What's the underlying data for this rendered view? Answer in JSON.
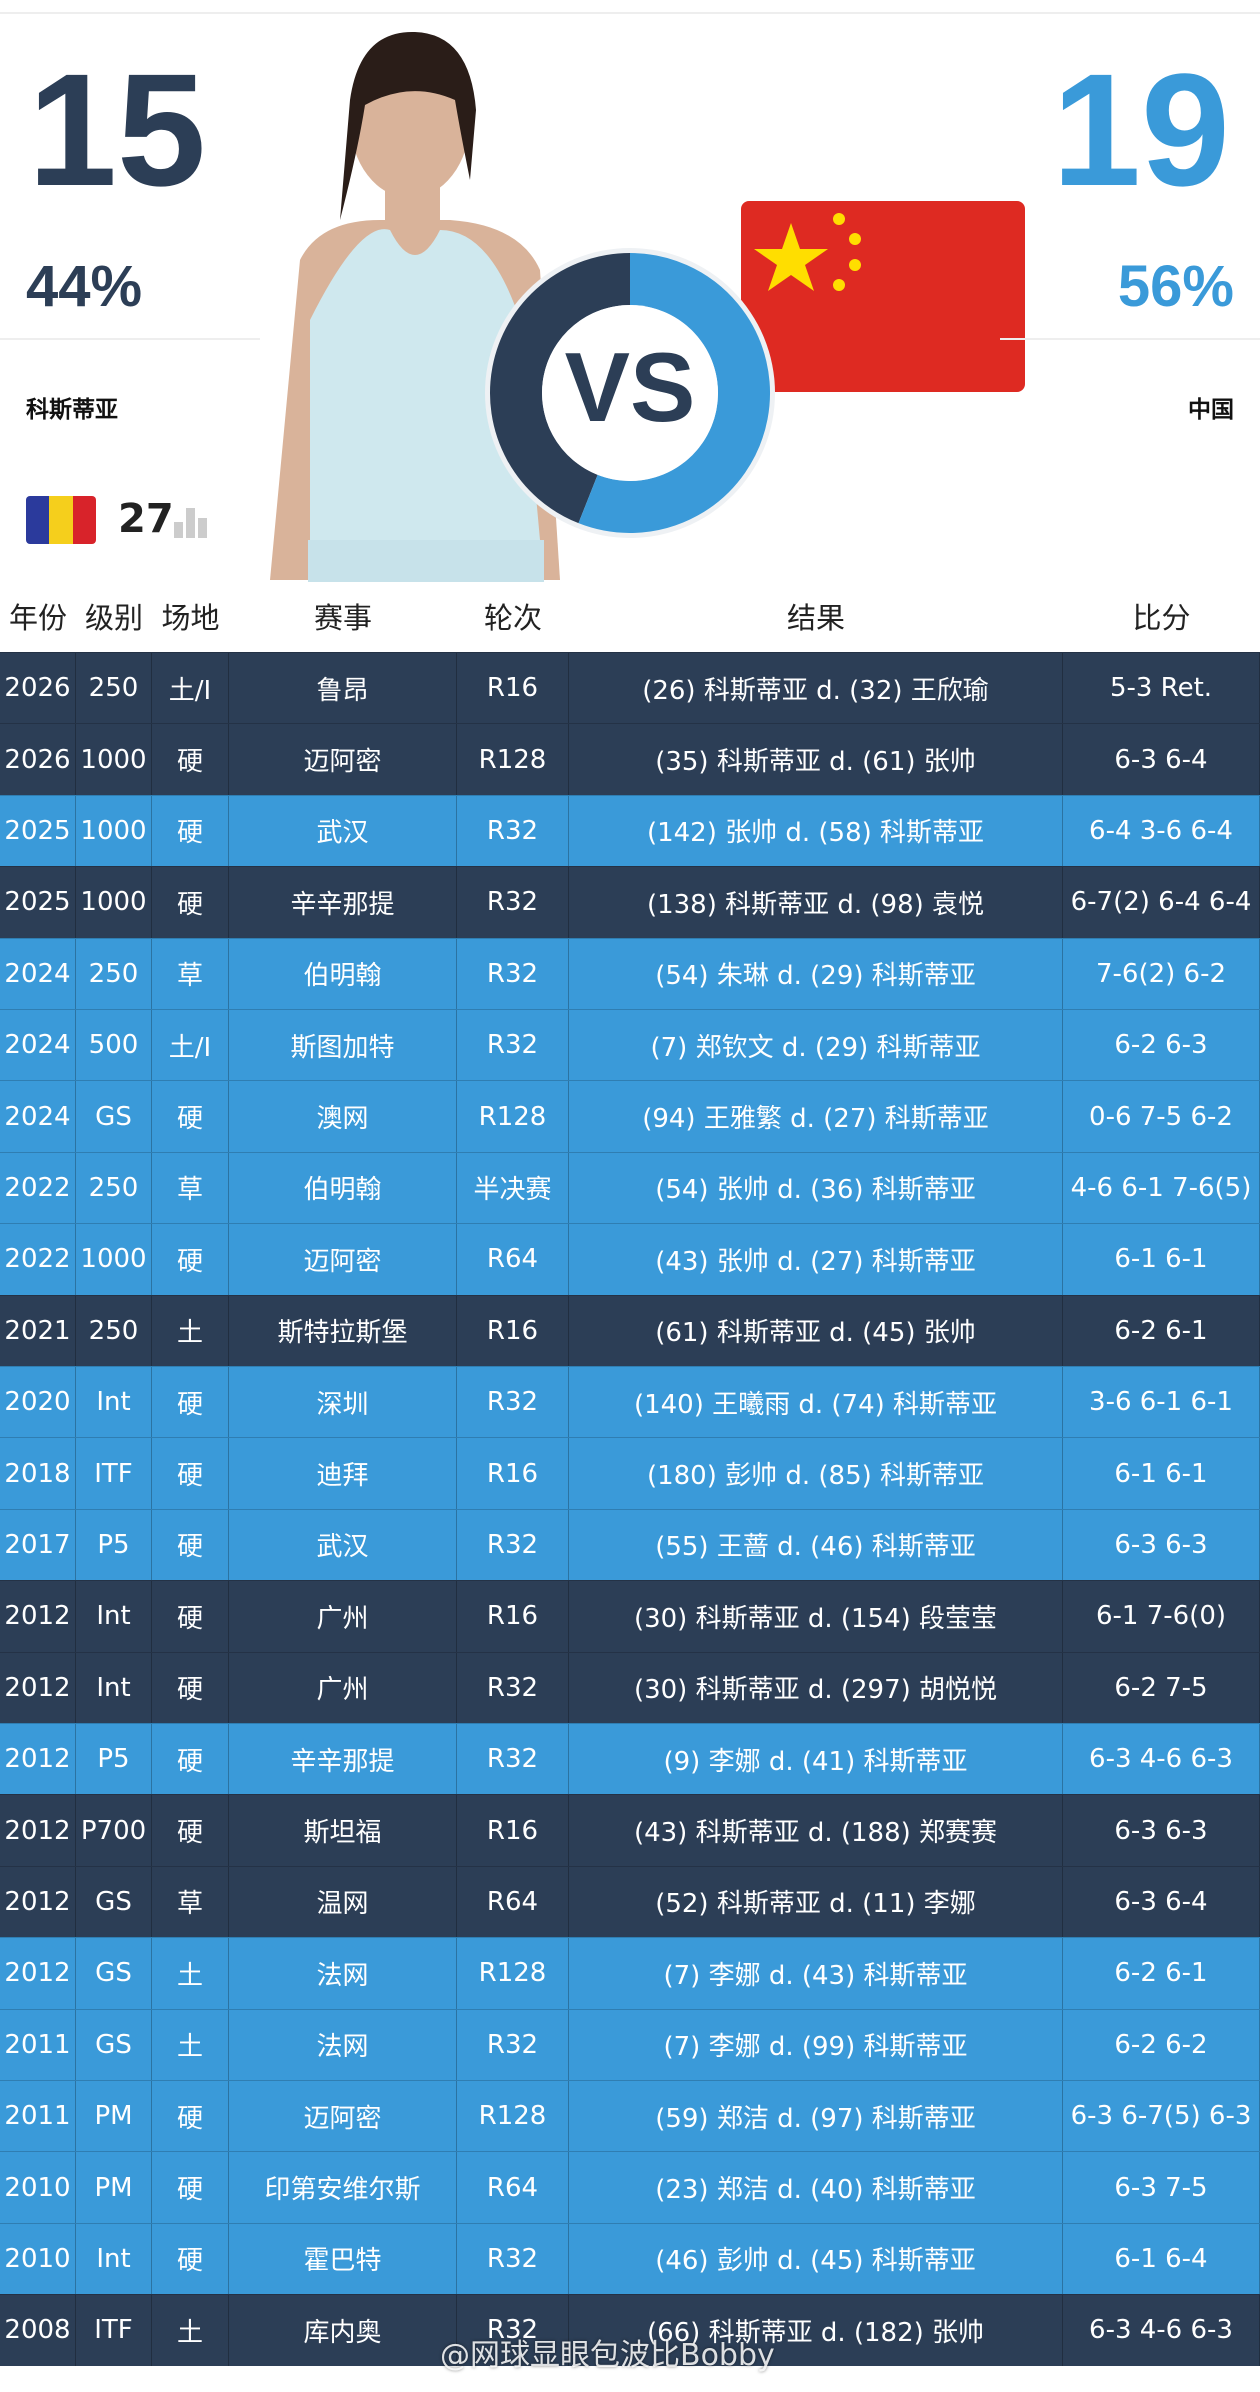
{
  "header": {
    "left": {
      "score": "15",
      "pct": "44%",
      "name": "科斯蒂亚",
      "rank": "27"
    },
    "right": {
      "score": "19",
      "pct": "56%",
      "name": "中国"
    },
    "vs": "VS"
  },
  "table": {
    "columns": [
      "年份",
      "级别",
      "场地",
      "赛事",
      "轮次",
      "结果",
      "比分"
    ],
    "rows": [
      [
        "2026",
        "250",
        "土/I",
        "鲁昂",
        "R16",
        "(26) 科斯蒂亚 d. (32) 王欣瑜",
        "5-3 Ret."
      ],
      [
        "2026",
        "1000",
        "硬",
        "迈阿密",
        "R128",
        "(35) 科斯蒂亚 d. (61) 张帅",
        "6-3 6-4"
      ],
      [
        "2025",
        "1000",
        "硬",
        "武汉",
        "R32",
        "(142) 张帅 d. (58) 科斯蒂亚",
        "6-4 3-6 6-4"
      ],
      [
        "2025",
        "1000",
        "硬",
        "辛辛那提",
        "R32",
        "(138) 科斯蒂亚 d. (98) 袁悦",
        "6-7(2) 6-4 6-4"
      ],
      [
        "2024",
        "250",
        "草",
        "伯明翰",
        "R32",
        "(54) 朱琳 d. (29) 科斯蒂亚",
        "7-6(2) 6-2"
      ],
      [
        "2024",
        "500",
        "土/I",
        "斯图加特",
        "R32",
        "(7) 郑钦文 d. (29) 科斯蒂亚",
        "6-2 6-3"
      ],
      [
        "2024",
        "GS",
        "硬",
        "澳网",
        "R128",
        "(94) 王雅繁 d. (27) 科斯蒂亚",
        "0-6 7-5 6-2"
      ],
      [
        "2022",
        "250",
        "草",
        "伯明翰",
        "半决赛",
        "(54) 张帅 d. (36) 科斯蒂亚",
        "4-6 6-1 7-6(5)"
      ],
      [
        "2022",
        "1000",
        "硬",
        "迈阿密",
        "R64",
        "(43) 张帅 d. (27) 科斯蒂亚",
        "6-1 6-1"
      ],
      [
        "2021",
        "250",
        "土",
        "斯特拉斯堡",
        "R16",
        "(61) 科斯蒂亚 d. (45) 张帅",
        "6-2 6-1"
      ],
      [
        "2020",
        "Int",
        "硬",
        "深圳",
        "R32",
        "(140) 王曦雨 d. (74) 科斯蒂亚",
        "3-6 6-1 6-1"
      ],
      [
        "2018",
        "ITF",
        "硬",
        "迪拜",
        "R16",
        "(180) 彭帅 d. (85) 科斯蒂亚",
        "6-1 6-1"
      ],
      [
        "2017",
        "P5",
        "硬",
        "武汉",
        "R32",
        "(55) 王蔷 d. (46) 科斯蒂亚",
        "6-3 6-3"
      ],
      [
        "2012",
        "Int",
        "硬",
        "广州",
        "R16",
        "(30) 科斯蒂亚 d. (154) 段莹莹",
        "6-1 7-6(0)"
      ],
      [
        "2012",
        "Int",
        "硬",
        "广州",
        "R32",
        "(30) 科斯蒂亚 d. (297) 胡悦悦",
        "6-2 7-5"
      ],
      [
        "2012",
        "P5",
        "硬",
        "辛辛那提",
        "R32",
        "(9) 李娜 d. (41) 科斯蒂亚",
        "6-3 4-6 6-3"
      ],
      [
        "2012",
        "P700",
        "硬",
        "斯坦福",
        "R16",
        "(43) 科斯蒂亚 d. (188) 郑赛赛",
        "6-3 6-3"
      ],
      [
        "2012",
        "GS",
        "草",
        "温网",
        "R64",
        "(52) 科斯蒂亚 d. (11) 李娜",
        "6-3 6-4"
      ],
      [
        "2012",
        "GS",
        "土",
        "法网",
        "R128",
        "(7) 李娜 d. (43) 科斯蒂亚",
        "6-2 6-1"
      ],
      [
        "2011",
        "GS",
        "土",
        "法网",
        "R32",
        "(7) 李娜 d. (99) 科斯蒂亚",
        "6-2 6-2"
      ],
      [
        "2011",
        "PM",
        "硬",
        "迈阿密",
        "R128",
        "(59) 郑洁 d. (97) 科斯蒂亚",
        "6-3 6-7(5) 6-3"
      ],
      [
        "2010",
        "PM",
        "硬",
        "印第安维尔斯",
        "R64",
        "(23) 郑洁 d. (40) 科斯蒂亚",
        "6-3 7-5"
      ],
      [
        "2010",
        "Int",
        "硬",
        "霍巴特",
        "R32",
        "(46) 彭帅 d. (45) 科斯蒂亚",
        "6-1 6-4"
      ],
      [
        "2008",
        "ITF",
        "土",
        "库内奥",
        "R32",
        "(66) 科斯蒂亚 d. (182) 张帅",
        "6-3 4-6 6-3"
      ]
    ]
  },
  "watermark": "@网球显眼包波比Bobby"
}
